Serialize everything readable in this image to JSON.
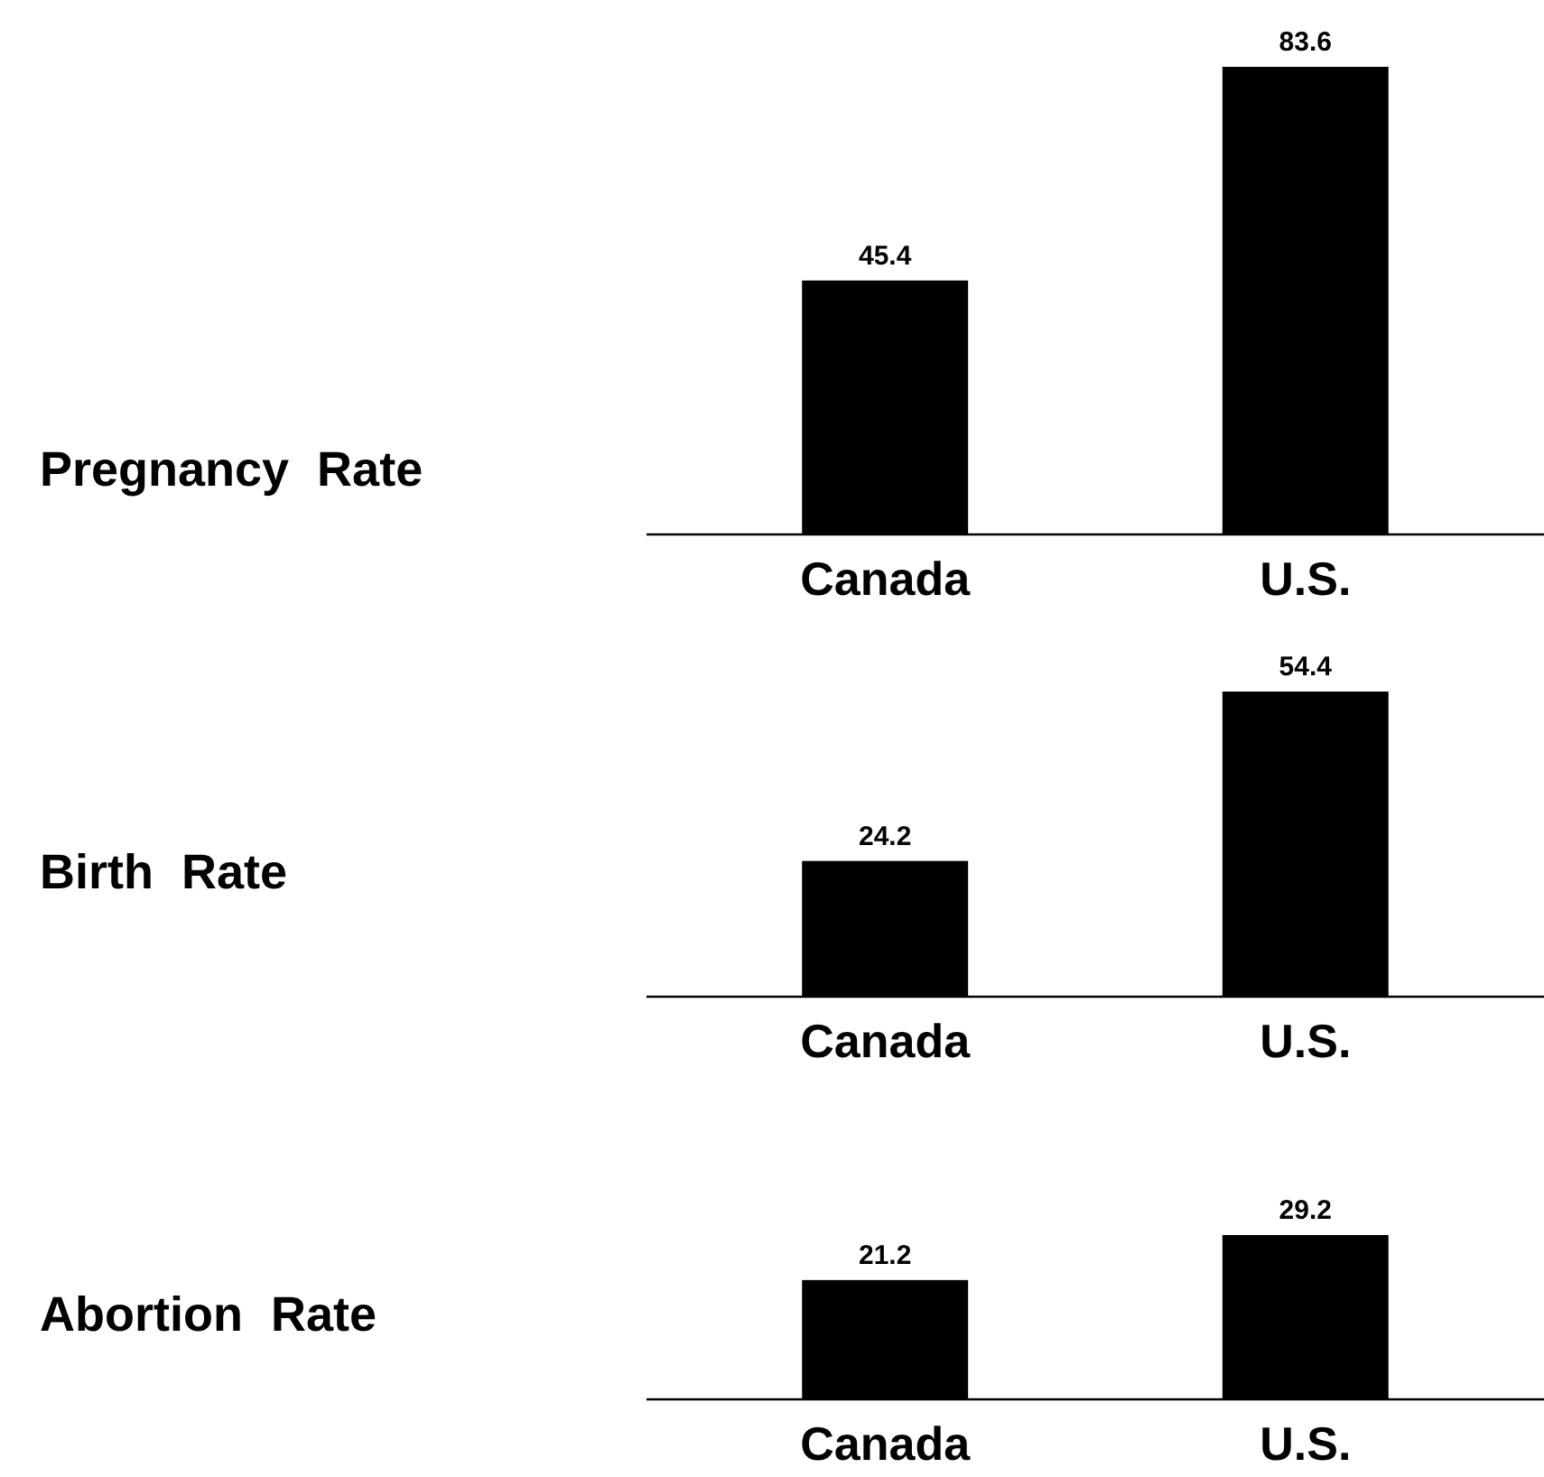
{
  "chart_data": [
    {
      "type": "bar",
      "ylabel": "Pregnancy Rate",
      "categories": [
        "Canada",
        "U.S."
      ],
      "values": [
        45.4,
        83.6
      ],
      "color": "#000000",
      "data_labels": true,
      "tick_labels": "x"
    },
    {
      "type": "bar",
      "ylabel": "Birth Rate",
      "categories": [
        "Canada",
        "U.S."
      ],
      "values": [
        24.2,
        54.4
      ],
      "color": "#000000",
      "data_labels": true,
      "tick_labels": "x"
    },
    {
      "type": "bar",
      "ylabel": "Abortion Rate",
      "categories": [
        "Canada",
        "U.S."
      ],
      "values": [
        21.2,
        29.2
      ],
      "color": "#000000",
      "data_labels": true,
      "tick_labels": "x"
    }
  ]
}
